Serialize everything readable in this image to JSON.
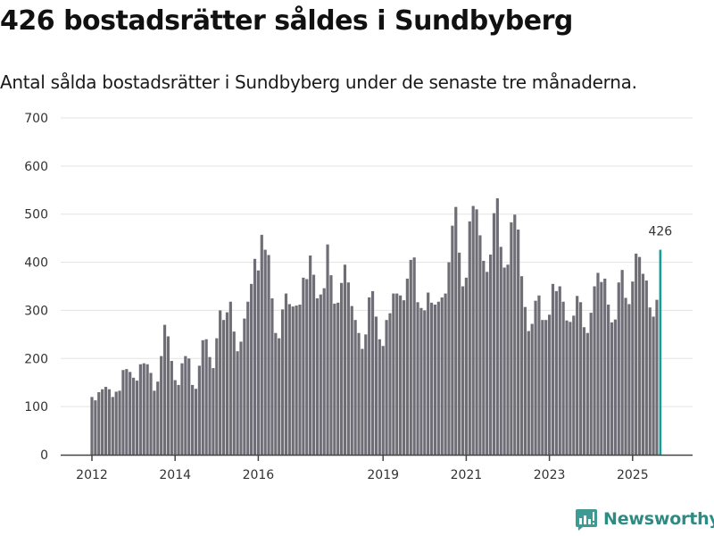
{
  "header": {
    "title": "426 bostadsrätter såldes i Sundbyberg",
    "subtitle": "Antal sålda bostadsrätter i Sundbyberg under de senaste tre månaderna."
  },
  "brand": {
    "name": "Newsworthy",
    "icon": "newsworthy-logo-icon",
    "color": "#2e8b84"
  },
  "colors": {
    "bar": "#6f6e76",
    "highlight": "#1a9c94",
    "grid": "#e3e3e3",
    "axis": "#444444"
  },
  "chart_data": {
    "type": "bar",
    "title": "426 bostadsrätter såldes i Sundbyberg",
    "subtitle": "Antal sålda bostadsrätter i Sundbyberg under de senaste tre månaderna.",
    "xlabel": "",
    "ylabel": "",
    "ylim": [
      0,
      700
    ],
    "yticks": [
      0,
      100,
      200,
      300,
      400,
      500,
      600,
      700
    ],
    "xticks": [
      "2012",
      "2014",
      "2016",
      "2019",
      "2021",
      "2023",
      "2025"
    ],
    "x_start": "2012-01",
    "x_frequency": "monthly",
    "grid": true,
    "highlight_last": true,
    "annotation": {
      "label": "426",
      "target": "last"
    },
    "values": [
      120,
      113,
      130,
      136,
      141,
      136,
      120,
      131,
      133,
      176,
      178,
      172,
      160,
      154,
      188,
      190,
      188,
      170,
      133,
      152,
      205,
      270,
      246,
      195,
      155,
      145,
      190,
      205,
      200,
      145,
      137,
      185,
      238,
      240,
      203,
      180,
      242,
      300,
      280,
      296,
      318,
      256,
      215,
      235,
      283,
      318,
      355,
      407,
      383,
      457,
      426,
      415,
      325,
      253,
      242,
      302,
      335,
      313,
      308,
      310,
      312,
      368,
      365,
      414,
      374,
      325,
      333,
      346,
      437,
      373,
      314,
      316,
      357,
      395,
      358,
      309,
      280,
      253,
      220,
      250,
      327,
      340,
      287,
      240,
      226,
      280,
      294,
      335,
      335,
      331,
      321,
      366,
      405,
      410,
      317,
      305,
      300,
      337,
      316,
      312,
      318,
      327,
      335,
      400,
      476,
      515,
      420,
      350,
      368,
      485,
      517,
      510,
      456,
      403,
      380,
      416,
      502,
      533,
      432,
      389,
      395,
      483,
      499,
      468,
      371,
      307,
      257,
      272,
      320,
      331,
      280,
      280,
      291,
      355,
      340,
      350,
      318,
      279,
      276,
      289,
      330,
      317,
      265,
      253,
      295,
      350,
      378,
      359,
      366,
      312,
      275,
      281,
      358,
      384,
      326,
      313,
      360,
      418,
      411,
      376,
      362,
      306,
      287,
      322,
      426
    ]
  }
}
